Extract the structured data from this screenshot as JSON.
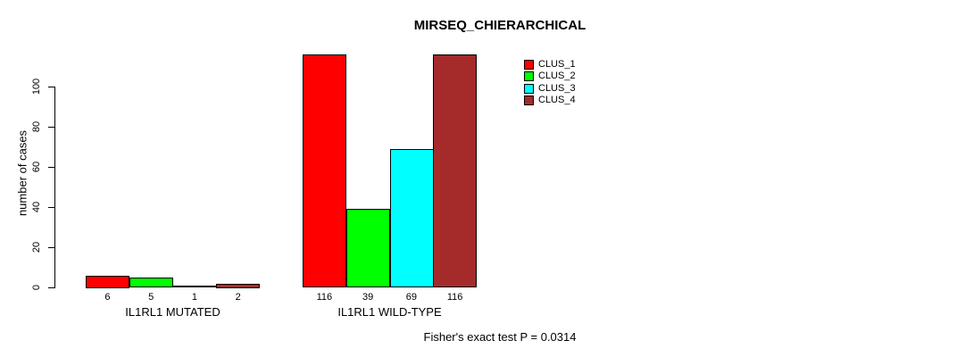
{
  "chart_data": {
    "type": "bar",
    "title": "MIRSEQ_CHIERARCHICAL",
    "ylabel": "number of cases",
    "xlabel": "",
    "ylim": [
      0,
      116
    ],
    "y_ticks": [
      0,
      20,
      40,
      60,
      80,
      100
    ],
    "categories": [
      "IL1RL1 MUTATED",
      "IL1RL1 WILD-TYPE"
    ],
    "series": [
      {
        "name": "CLUS_1",
        "color": "#FF0000",
        "values": [
          6,
          116
        ]
      },
      {
        "name": "CLUS_2",
        "color": "#00FF00",
        "values": [
          5,
          39
        ]
      },
      {
        "name": "CLUS_3",
        "color": "#00FFFF",
        "values": [
          1,
          69
        ]
      },
      {
        "name": "CLUS_4",
        "color": "#A52A2A",
        "values": [
          2,
          116
        ]
      }
    ],
    "bar_value_labels": [
      [
        6,
        5,
        1,
        2
      ],
      [
        116,
        39,
        69,
        116
      ]
    ],
    "legend_position": "top-right",
    "grid": false,
    "annotation": "Fisher's exact test P = 0.0314"
  },
  "colors": {
    "axis": "#000000",
    "text": "#000000",
    "background": "#FFFFFF"
  }
}
